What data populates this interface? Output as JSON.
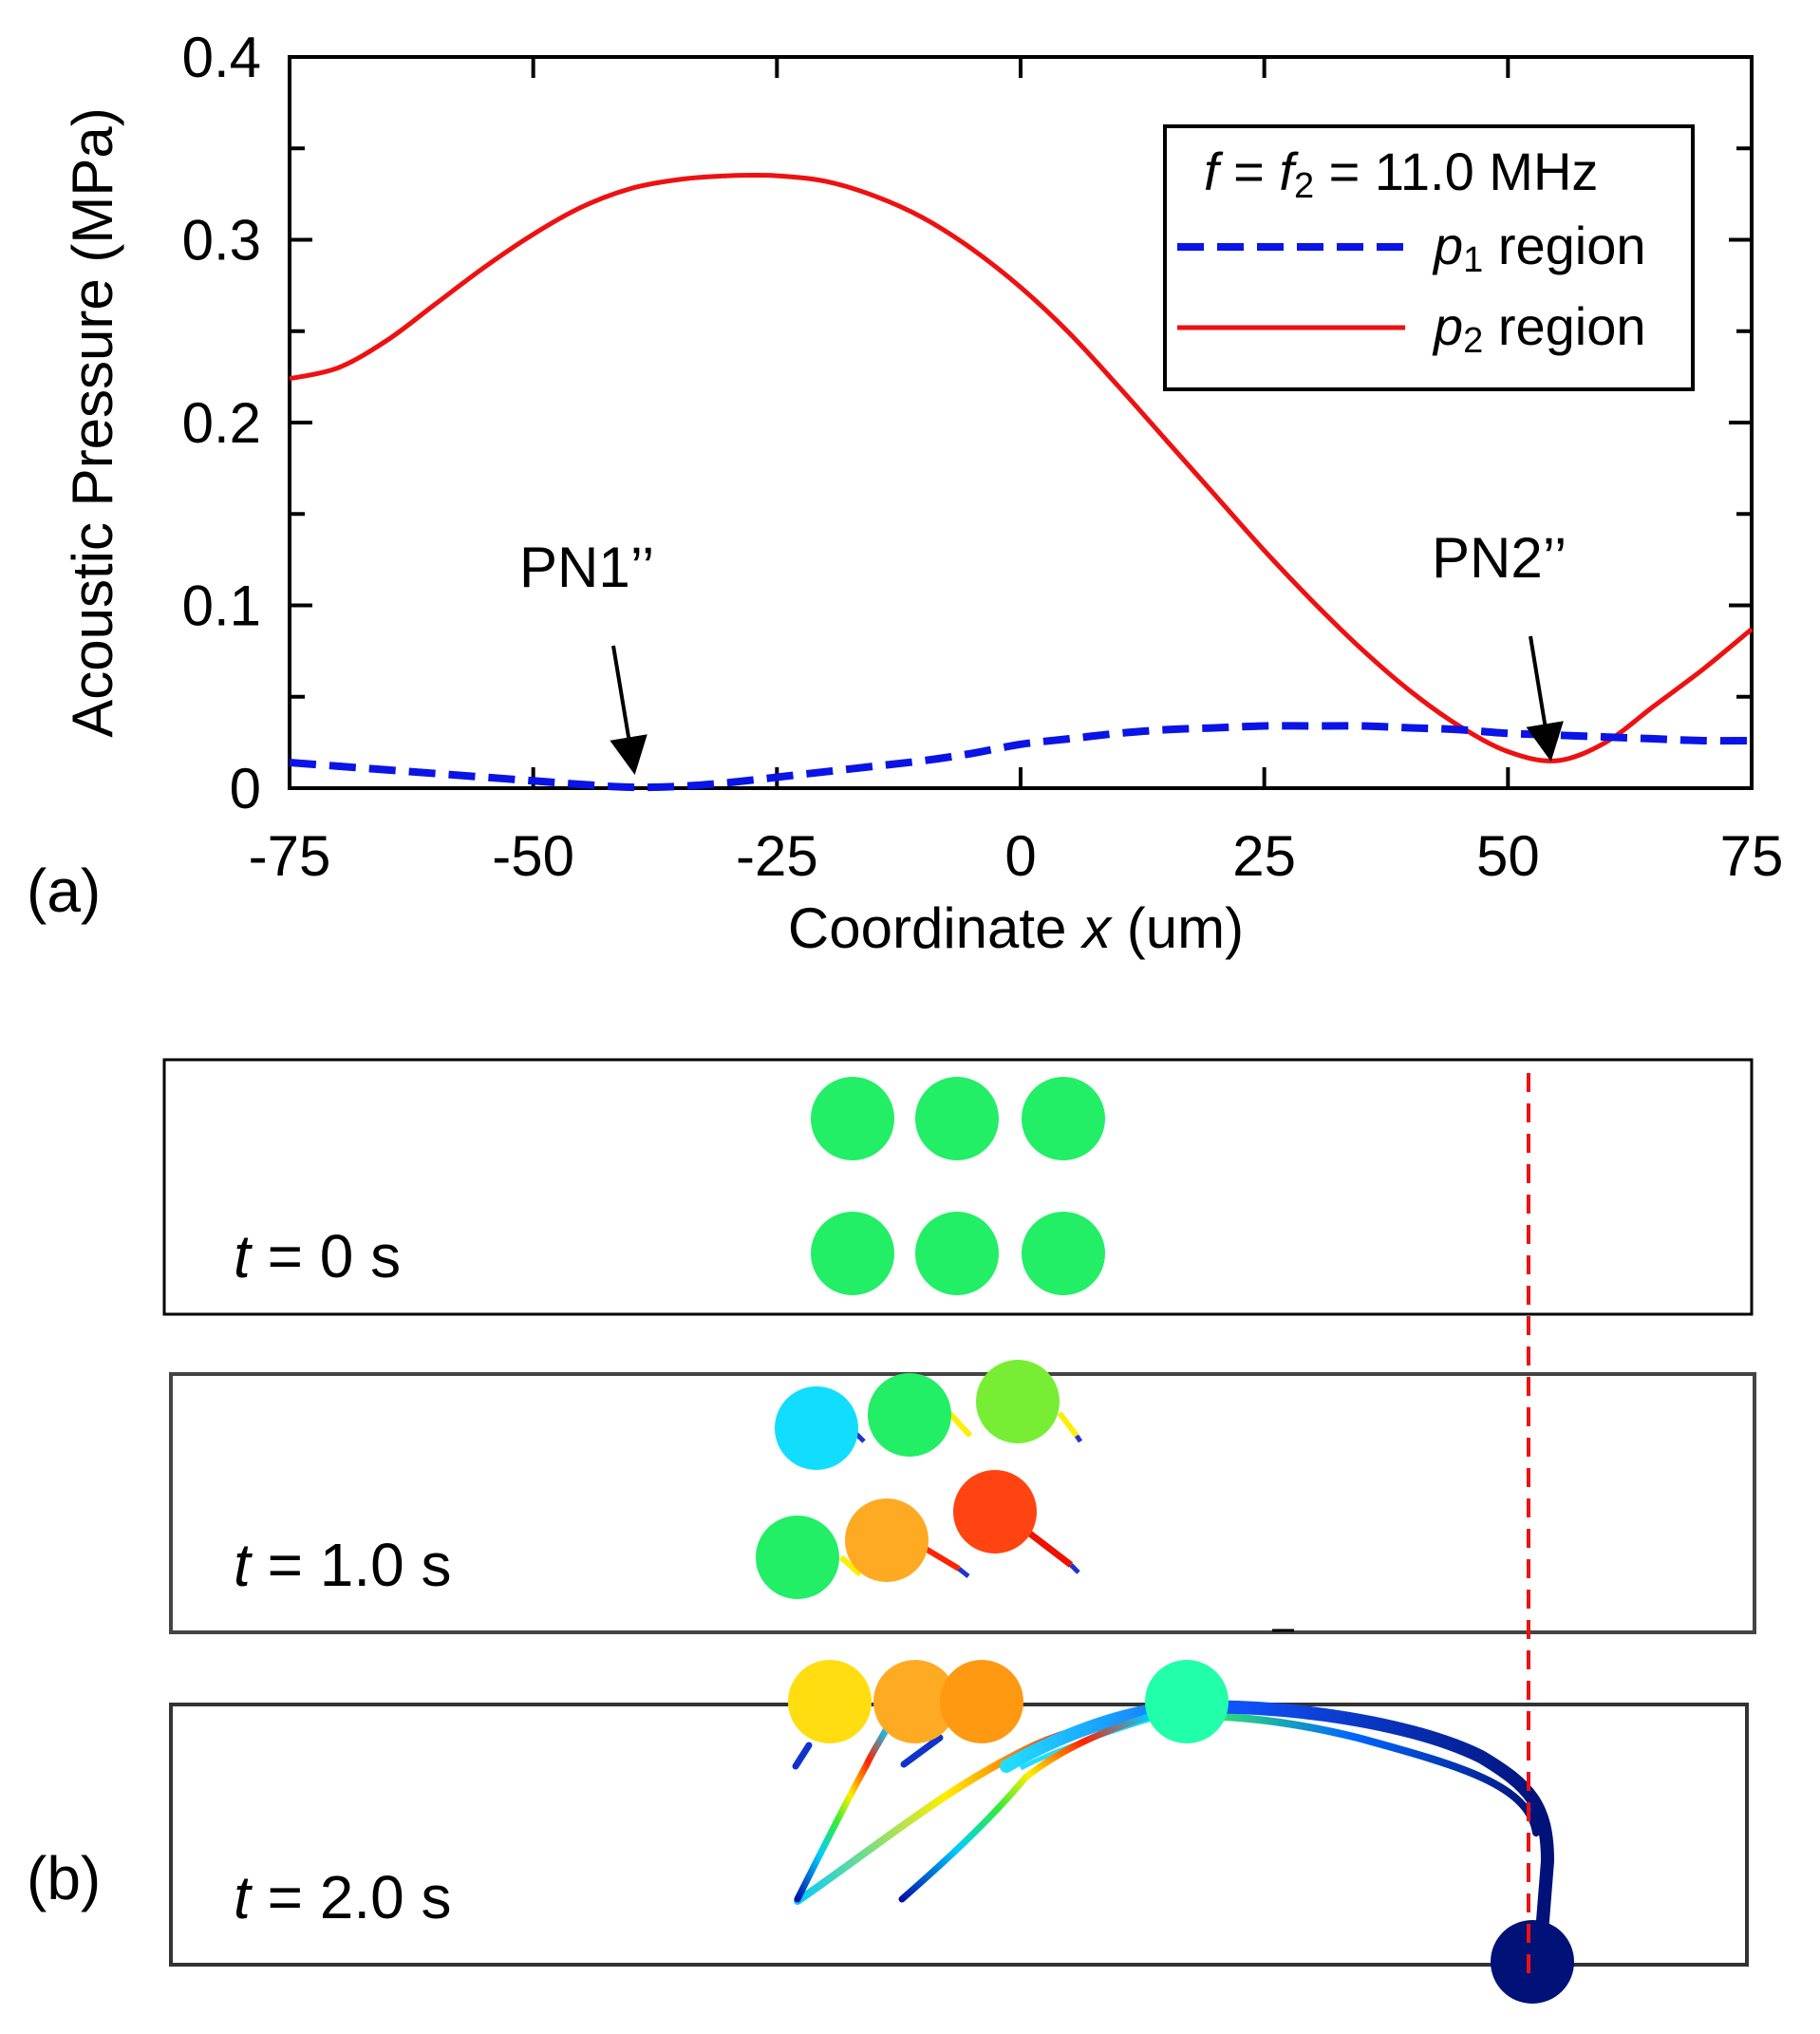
{
  "chart_data": {
    "type": "line",
    "title": "",
    "panel_label": "(a)",
    "xlabel_prefix": "Coordinate ",
    "xlabel_var": "x",
    "xlabel_suffix": " (um)",
    "ylabel": "Acoustic Pressure (MPa)",
    "xlim": [
      -75,
      75
    ],
    "ylim": [
      0,
      0.4
    ],
    "xticks": [
      -75,
      -50,
      -25,
      0,
      25,
      50,
      75
    ],
    "xtick_labels": [
      "-75",
      "-50",
      "-25",
      "0",
      "25",
      "50",
      "75"
    ],
    "yticks": [
      0,
      0.1,
      0.2,
      0.3,
      0.4
    ],
    "ytick_labels": [
      "0",
      "0.1",
      "0.2",
      "0.3",
      "0.4"
    ],
    "legend": {
      "title_f": "f",
      "title_mid": " = ",
      "title_f2": "f",
      "title_sub": "2",
      "title_value": " = 11.0 MHz",
      "entries": [
        {
          "var": "p",
          "sub": "1",
          "text": " region",
          "color": "#0a14e6",
          "style": "dashed"
        },
        {
          "var": "p",
          "sub": "2",
          "text": " region",
          "color": "#ee1111",
          "style": "solid"
        }
      ]
    },
    "series": [
      {
        "name": "p1 region",
        "color": "#0a14e6",
        "style": "dashed",
        "x": [
          -75,
          -70,
          -65,
          -60,
          -55,
          -50,
          -45,
          -40,
          -35,
          -30,
          -25,
          -20,
          -15,
          -10,
          -5,
          0,
          5,
          10,
          15,
          20,
          25,
          30,
          35,
          40,
          45,
          50,
          55,
          60,
          65,
          70,
          75
        ],
        "y": [
          0.014,
          0.012,
          0.01,
          0.008,
          0.006,
          0.004,
          0.002,
          0.0005,
          0.001,
          0.003,
          0.006,
          0.009,
          0.012,
          0.015,
          0.019,
          0.024,
          0.027,
          0.03,
          0.032,
          0.033,
          0.034,
          0.034,
          0.034,
          0.033,
          0.032,
          0.03,
          0.029,
          0.028,
          0.027,
          0.026,
          0.026
        ]
      },
      {
        "name": "p2 region",
        "color": "#ee1111",
        "style": "solid",
        "x": [
          -75,
          -70,
          -65,
          -60,
          -55,
          -50,
          -45,
          -40,
          -35,
          -30,
          -25,
          -20,
          -15,
          -10,
          -5,
          0,
          5,
          10,
          15,
          20,
          25,
          30,
          35,
          40,
          45,
          50,
          55,
          60,
          65,
          70,
          75
        ],
        "y": [
          0.224,
          0.23,
          0.245,
          0.265,
          0.285,
          0.303,
          0.318,
          0.328,
          0.333,
          0.335,
          0.335,
          0.332,
          0.324,
          0.312,
          0.295,
          0.274,
          0.249,
          0.22,
          0.19,
          0.16,
          0.13,
          0.102,
          0.076,
          0.053,
          0.034,
          0.02,
          0.015,
          0.025,
          0.045,
          0.065,
          0.087
        ]
      }
    ],
    "annotations": [
      {
        "text": "PN1’’",
        "x": -39,
        "y": 0.001
      },
      {
        "text": "PN2’’",
        "x": 55,
        "y": 0.016
      }
    ]
  },
  "panel_b": {
    "label": "(b)",
    "frames": [
      {
        "t_var": "t",
        "t_text": " = 0 s"
      },
      {
        "t_var": "t",
        "t_text": " = 1.0 s"
      },
      {
        "t_var": "t",
        "t_text": " = 2.0 s"
      }
    ],
    "colors": {
      "green": "#22ee66",
      "cyan": "#11ddff",
      "lime": "#77ee33",
      "orange": "#ffaa22",
      "red_orange": "#ff4411",
      "yellow": "#ffdd11",
      "dark_orange": "#ff9911",
      "teal": "#22ffaa",
      "navy": "#001177",
      "marker_line": "#ee1111"
    }
  }
}
